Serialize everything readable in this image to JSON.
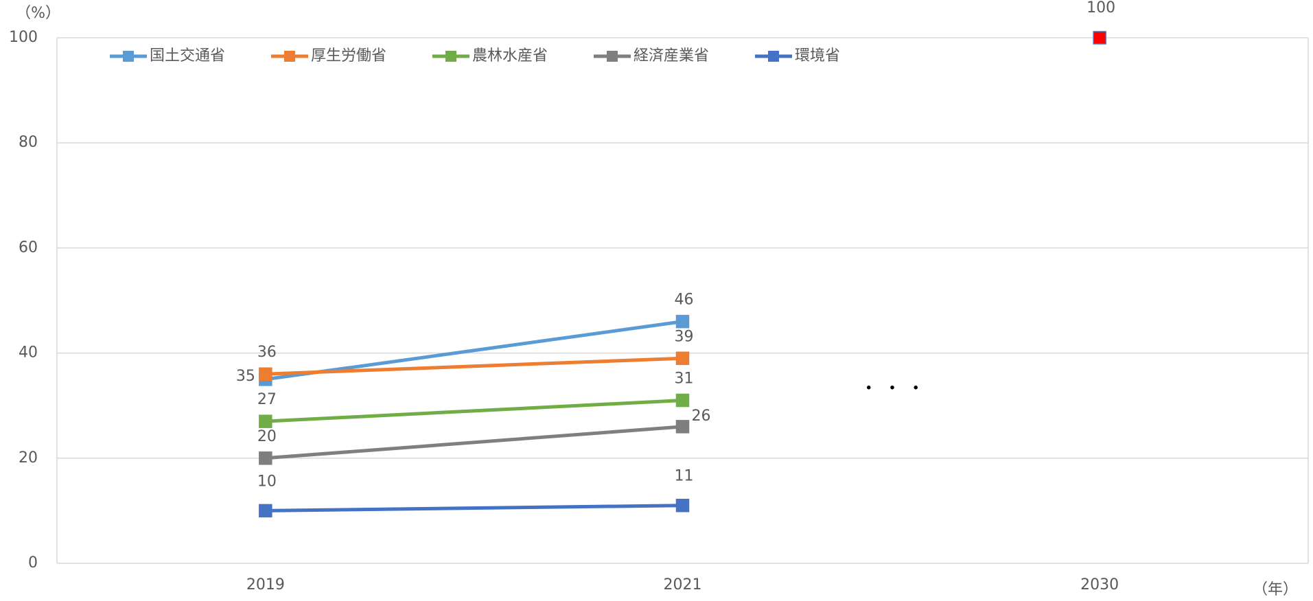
{
  "chart_data": {
    "type": "line",
    "y_label": "（%）",
    "x_label": "（年）",
    "annotation": "・ ・ ・",
    "categories": [
      "2019",
      "2021",
      "2030"
    ],
    "series": [
      {
        "name": "国土交通省",
        "color": "#5b9bd5",
        "values": [
          35,
          46,
          null
        ]
      },
      {
        "name": "厚生労働省",
        "color": "#ed7d31",
        "values": [
          36,
          39,
          null
        ]
      },
      {
        "name": "農林水産省",
        "color": "#70ad47",
        "values": [
          27,
          31,
          null
        ]
      },
      {
        "name": "経済産業省",
        "color": "#7f7f7f",
        "values": [
          20,
          26,
          null
        ]
      },
      {
        "name": "環境省",
        "color": "#4472c4",
        "values": [
          10,
          11,
          null
        ]
      },
      {
        "color": "#ff0000",
        "values": [
          null,
          null,
          100
        ]
      }
    ],
    "ylim": [
      0,
      100
    ],
    "yticks": [
      0,
      20,
      40,
      60,
      80,
      100
    ],
    "grid": true
  }
}
